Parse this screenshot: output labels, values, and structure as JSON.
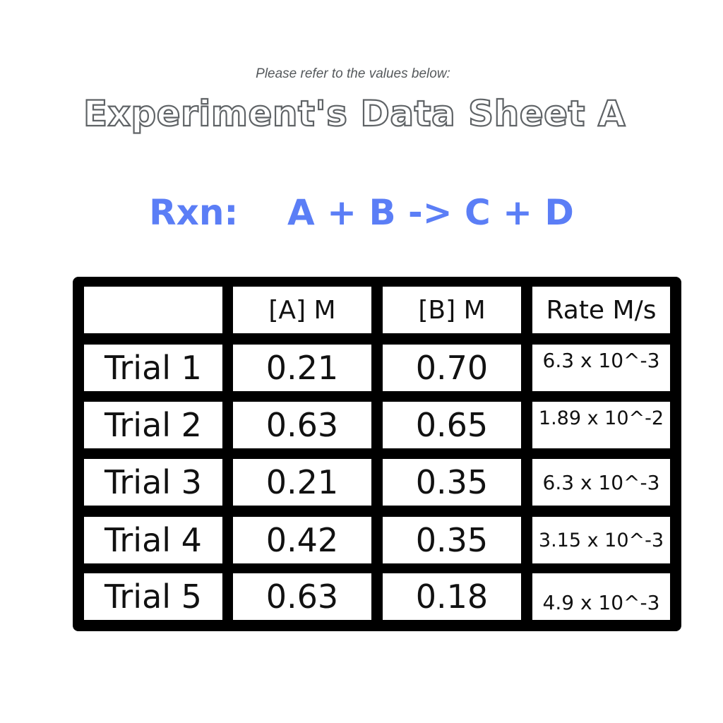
{
  "intro_text": "Please refer to the values below:",
  "sheet_title": "Experiment's Data Sheet A",
  "reaction": {
    "label": "Rxn:",
    "equation": "A + B -> C + D"
  },
  "table": {
    "headers": [
      "",
      "[A] M",
      "[B] M",
      "Rate M/s"
    ],
    "rows": [
      {
        "trial": "Trial 1",
        "a": "0.21",
        "b": "0.70",
        "rate": "6.3 x 10^-3"
      },
      {
        "trial": "Trial 2",
        "a": "0.63",
        "b": "0.65",
        "rate": "1.89 x 10^-2"
      },
      {
        "trial": "Trial 3",
        "a": "0.21",
        "b": "0.35",
        "rate": "6.3 x 10^-3"
      },
      {
        "trial": "Trial 4",
        "a": "0.42",
        "b": "0.35",
        "rate": "3.15 x 10^-3"
      },
      {
        "trial": "Trial 5",
        "a": "0.63",
        "b": "0.18",
        "rate": "4.9 x 10^-3"
      }
    ]
  },
  "colors": {
    "reaction_blue": "#5b7ef6",
    "table_border": "#000000",
    "title_outline": "#5f6366"
  }
}
